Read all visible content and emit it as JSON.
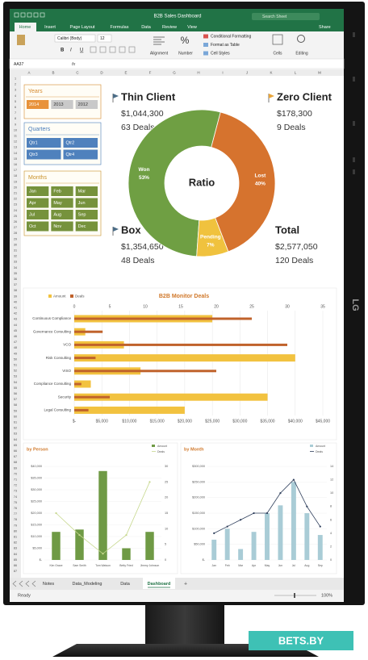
{
  "window": {
    "title": "B2B Sales Dashboard",
    "search": "Search Sheet",
    "share": "Share",
    "tabs": [
      "Home",
      "Insert",
      "Page Layout",
      "Formulas",
      "Data",
      "Review",
      "View"
    ]
  },
  "ribbon": {
    "font": "Calibri (Body)",
    "font_size": 12,
    "format_buttons": [
      "B",
      "I",
      "U"
    ],
    "number_icon": "%",
    "groups": [
      "Alignment",
      "Number",
      "Cells",
      "Editing"
    ],
    "styles": [
      "Conditional Formatting",
      "Format as Table",
      "Cell Styles"
    ]
  },
  "formula_bar": {
    "name_box": "AA37",
    "fx": "fx"
  },
  "columns": [
    "A",
    "B",
    "C",
    "D",
    "E",
    "F",
    "G",
    "H",
    "I",
    "J",
    "K",
    "L",
    "M"
  ],
  "rows": [
    1,
    2,
    3,
    4,
    5,
    6,
    7,
    8,
    9,
    10,
    11,
    12,
    13,
    14,
    15,
    16,
    17,
    18,
    19,
    20,
    21,
    22,
    23,
    24,
    25,
    26,
    27,
    28,
    29,
    30,
    31,
    32,
    33,
    34,
    35,
    36,
    37,
    38,
    39,
    40,
    41,
    42,
    43,
    44,
    45,
    46,
    47,
    48,
    49,
    50,
    51,
    52,
    53,
    54,
    55,
    56,
    57,
    58,
    59,
    60,
    61,
    62,
    63,
    64,
    65,
    66,
    67,
    68,
    69,
    70,
    71,
    72,
    73,
    74,
    75,
    76,
    77,
    78,
    79,
    80,
    81,
    82,
    83,
    84,
    85,
    86,
    87
  ],
  "slicers": [
    {
      "title": "Years",
      "header_color": "#d68a2e",
      "tile_color": "#c9c9c9",
      "selected_color": "#e8923a",
      "items": [
        "2014",
        "2013",
        "2012"
      ]
    },
    {
      "title": "Quarters",
      "header_color": "#4a7ebb",
      "tile_color": "#4f81bd",
      "items": [
        "Qtr1",
        "Qtr2",
        "Qtr3",
        "Qtr4"
      ]
    },
    {
      "title": "Months",
      "header_color": "#c9912a",
      "tile_color": "#76923c",
      "items": [
        "Jan",
        "Feb",
        "Mar",
        "Apr",
        "May",
        "Jun",
        "Jul",
        "Aug",
        "Sep",
        "Oct",
        "Nov",
        "Dec"
      ]
    }
  ],
  "kpis": [
    {
      "name": "Thin Client",
      "amount": "$1,044,300",
      "deals": "63 Deals"
    },
    {
      "name": "Zero Client",
      "amount": "$178,300",
      "deals": "9 Deals"
    },
    {
      "name": "Box",
      "amount": "$1,354,650",
      "deals": "48 Deals"
    },
    {
      "name": "Total",
      "amount": "$2,577,050",
      "deals": "120 Deals"
    }
  ],
  "ratio": {
    "type": "pie",
    "title": "Ratio",
    "categories": [
      "Won",
      "Lost",
      "Pending"
    ],
    "values": [
      53,
      40,
      7
    ],
    "value_labels": [
      "53%",
      "40%",
      "7%"
    ],
    "colors": [
      "#6f9f43",
      "#d6732e",
      "#f0c23e"
    ]
  },
  "deals_chart": {
    "type": "bar",
    "orientation": "horizontal",
    "title": "B2B Monitor Deals",
    "categories": [
      "Continuous Compliance",
      "Governance Consulting",
      "VCO",
      "Risk Consulting",
      "VISO",
      "Compliance Consulting",
      "Security",
      "Legal Consulting"
    ],
    "series": [
      {
        "name": "Amount",
        "color": "#f2c23f",
        "values": [
          25000,
          2000,
          9000,
          40000,
          12000,
          3000,
          35000,
          20000
        ]
      },
      {
        "name": "Deals",
        "color": "#c0622b",
        "axis": "x2",
        "values": [
          25,
          4,
          30,
          3,
          20,
          1,
          5,
          2
        ]
      }
    ],
    "xlim": [
      0,
      45000
    ],
    "xticks": [
      {
        "value": 0,
        "label": "$-"
      },
      {
        "value": 5000,
        "label": "$5,000"
      },
      {
        "value": 10000,
        "label": "$10,000"
      },
      {
        "value": 15000,
        "label": "$15,000"
      },
      {
        "value": 20000,
        "label": "$20,000"
      },
      {
        "value": 25000,
        "label": "$25,000"
      },
      {
        "value": 30000,
        "label": "$30,000"
      },
      {
        "value": 35000,
        "label": "$35,000"
      },
      {
        "value": 40000,
        "label": "$40,000"
      },
      {
        "value": 45000,
        "label": "$45,000"
      }
    ],
    "x2lim": [
      0,
      35
    ],
    "x2ticks": [
      0,
      5,
      10,
      15,
      20,
      25,
      30,
      35
    ],
    "grid": true
  },
  "by_person": {
    "type": "combo",
    "title": "by Person",
    "categories": [
      "Kim Grace",
      "Sam Smith",
      "Tom Watson",
      "Betty Fried",
      "Jimmy Johnson"
    ],
    "series": [
      {
        "name": "Amount",
        "type": "bar",
        "color": "#6f9a45",
        "values": [
          12000,
          13000,
          38000,
          5000,
          12000
        ]
      },
      {
        "name": "Deals",
        "type": "line",
        "color": "#c7d88e",
        "axis": "y2",
        "values": [
          15,
          8,
          2,
          8,
          25
        ]
      }
    ],
    "ylim": [
      0,
      40000
    ],
    "yticks": [
      {
        "value": 0,
        "label": "$-"
      },
      {
        "value": 5000,
        "label": "$5,000"
      },
      {
        "value": 10000,
        "label": "$10,000"
      },
      {
        "value": 15000,
        "label": "$15,000"
      },
      {
        "value": 20000,
        "label": "$20,000"
      },
      {
        "value": 25000,
        "label": "$25,000"
      },
      {
        "value": 30000,
        "label": "$30,000"
      },
      {
        "value": 35000,
        "label": "$35,000"
      },
      {
        "value": 40000,
        "label": "$40,000"
      }
    ],
    "y2lim": [
      0,
      30
    ],
    "y2ticks": [
      0,
      5,
      10,
      15,
      20,
      25,
      30
    ],
    "grid": true
  },
  "by_month": {
    "type": "combo",
    "title": "by Month",
    "categories": [
      "Jan",
      "Feb",
      "Mar",
      "Apr",
      "May",
      "Jun",
      "Jul",
      "Aug",
      "Sep"
    ],
    "series": [
      {
        "name": "Amount",
        "type": "bar",
        "color": "#a9ccd6",
        "values": [
          65000,
          100000,
          35000,
          90000,
          150000,
          175000,
          250000,
          150000,
          80000
        ]
      },
      {
        "name": "Deals",
        "type": "line",
        "color": "#2f3f5c",
        "axis": "y2",
        "values": [
          4,
          5,
          6,
          7,
          7,
          10,
          12,
          8,
          5
        ]
      }
    ],
    "ylim": [
      0,
      300000
    ],
    "yticks": [
      {
        "value": 0,
        "label": "$-"
      },
      {
        "value": 50000,
        "label": "$50,000"
      },
      {
        "value": 100000,
        "label": "$100,000"
      },
      {
        "value": 150000,
        "label": "$150,000"
      },
      {
        "value": 200000,
        "label": "$200,000"
      },
      {
        "value": 250000,
        "label": "$250,000"
      },
      {
        "value": 300000,
        "label": "$300,000"
      }
    ],
    "y2lim": [
      0,
      14
    ],
    "y2ticks": [
      0,
      2,
      4,
      6,
      8,
      10,
      12,
      14
    ],
    "grid": true
  },
  "sheet_tabs": [
    "Notes",
    "Data_Modeling",
    "Data",
    "Dashboard"
  ],
  "add_tab": "+",
  "status": {
    "ready": "Ready",
    "zoom": "100%"
  },
  "brand": "LG",
  "watermark": "BETS.BY"
}
